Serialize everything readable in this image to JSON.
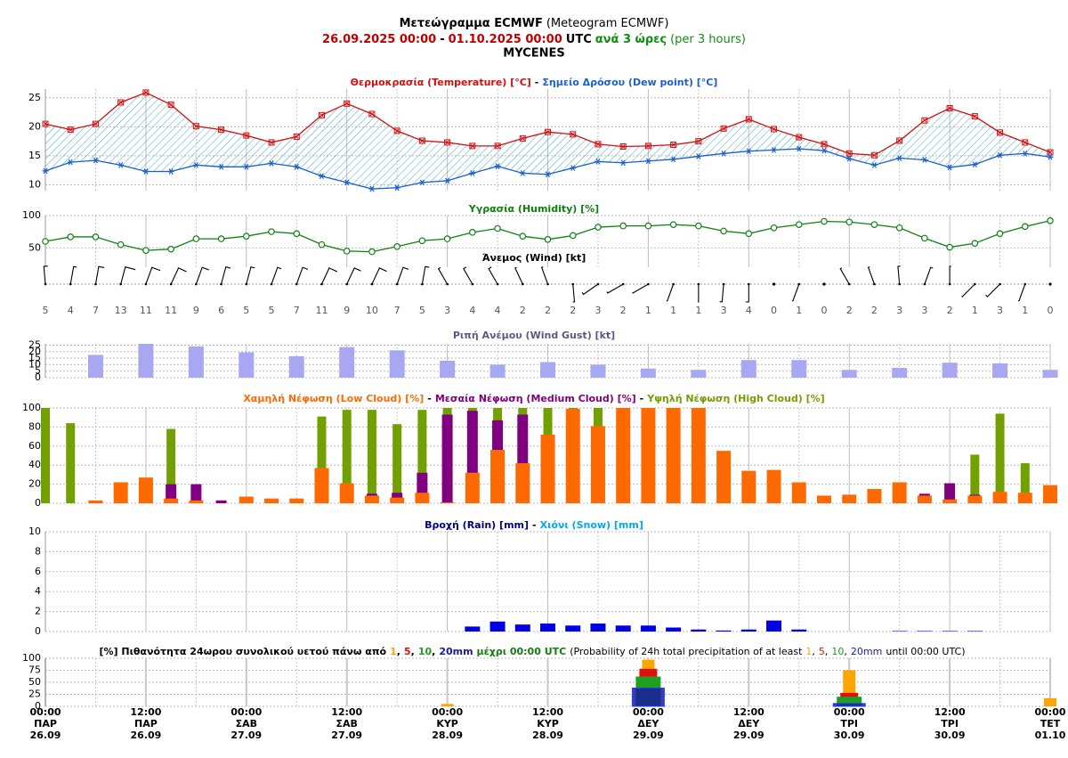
{
  "header": {
    "title": "Μετεώγραμμα ECMWF",
    "title_en": "(Meteogram ECMWF)",
    "start": "26.09.2025 00:00",
    "dash": "-",
    "end": "01.10.2025 00:00",
    "tz": "UTC",
    "step": "ανά 3 ώρες",
    "step_en": "(per 3 hours)",
    "location": "MYCENES"
  },
  "separator": "-",
  "time_axis": {
    "time": [
      "00:00",
      null,
      null,
      null,
      "12:00",
      null,
      null,
      null,
      "00:00",
      null,
      null,
      null,
      "12:00",
      null,
      null,
      null,
      "00:00",
      null,
      null,
      null,
      "12:00",
      null,
      null,
      null,
      "00:00",
      null,
      null,
      null,
      "12:00",
      null,
      null,
      null,
      "00:00",
      null,
      null,
      null,
      "12:00",
      null,
      null,
      null,
      "00:00"
    ],
    "day": [
      "ΠΑΡ",
      null,
      null,
      null,
      "ΠΑΡ",
      null,
      null,
      null,
      "ΣΑΒ",
      null,
      null,
      null,
      "ΣΑΒ",
      null,
      null,
      null,
      "ΚΥΡ",
      null,
      null,
      null,
      "ΚΥΡ",
      null,
      null,
      null,
      "ΔΕΥ",
      null,
      null,
      null,
      "ΔΕΥ",
      null,
      null,
      null,
      "ΤΡΙ",
      null,
      null,
      null,
      "ΤΡΙ",
      null,
      null,
      null,
      "ΤΕΤ"
    ],
    "date": [
      "26.09",
      null,
      null,
      null,
      "26.09",
      null,
      null,
      null,
      "27.09",
      null,
      null,
      null,
      "27.09",
      null,
      null,
      null,
      "28.09",
      null,
      null,
      null,
      "28.09",
      null,
      null,
      null,
      "29.09",
      null,
      null,
      null,
      "29.09",
      null,
      null,
      null,
      "30.09",
      null,
      null,
      null,
      "30.09",
      null,
      null,
      null,
      "01.10"
    ]
  },
  "chart_data": [
    {
      "type": "line",
      "fill_between": true,
      "ylim": [
        9,
        26.5
      ],
      "yticks": [
        10,
        15,
        20,
        25
      ],
      "grid": true,
      "series": [
        {
          "name": "Θερμοκρασία (Temperature) [°C]",
          "color": "#d01010",
          "marker": "square",
          "values": [
            20.5,
            19.5,
            20.5,
            24.2,
            25.9,
            23.8,
            20.1,
            19.5,
            18.5,
            17.3,
            18.3,
            22.0,
            24.0,
            22.2,
            19.3,
            17.6,
            17.3,
            16.7,
            16.7,
            18.0,
            19.1,
            18.7,
            17.0,
            16.6,
            16.7,
            16.9,
            17.5,
            19.7,
            21.3,
            19.6,
            18.2,
            17.0,
            15.4,
            15.1,
            17.6,
            21.1,
            23.2,
            21.8,
            19.0,
            17.3,
            15.6
          ]
        },
        {
          "name": "Σημείο Δρόσου (Dew point) [°C]",
          "color": "#1a5fd0",
          "marker": "star",
          "values": [
            12.4,
            13.9,
            14.2,
            13.4,
            12.3,
            12.3,
            13.4,
            13.1,
            13.1,
            13.7,
            13.1,
            11.5,
            10.4,
            9.3,
            9.5,
            10.4,
            10.7,
            12.0,
            13.2,
            12.0,
            11.8,
            12.9,
            14.0,
            13.8,
            14.1,
            14.4,
            14.9,
            15.4,
            15.8,
            16.0,
            16.2,
            15.9,
            14.5,
            13.4,
            14.6,
            14.3,
            13.0,
            13.5,
            15.1,
            15.4,
            14.8
          ]
        }
      ]
    },
    {
      "type": "line",
      "ylim": [
        20,
        100
      ],
      "yticks": [
        50,
        100
      ],
      "grid": true,
      "series": [
        {
          "name": "Υγρασία (Humidity) [%]",
          "color": "#108010",
          "marker": "circle",
          "values": [
            60,
            67,
            67,
            55,
            46,
            48,
            64,
            64,
            68,
            75,
            72,
            55,
            45,
            44,
            52,
            61,
            64,
            74,
            80,
            68,
            63,
            69,
            82,
            84,
            84,
            86,
            84,
            76,
            72,
            81,
            86,
            91,
            90,
            86,
            81,
            65,
            51,
            57,
            72,
            83,
            92
          ]
        }
      ]
    },
    {
      "type": "wind",
      "title": "Άνεμος (Wind) [kt]",
      "speed": [
        5,
        4,
        7,
        13,
        11,
        11,
        9,
        6,
        5,
        5,
        7,
        11,
        9,
        10,
        7,
        5,
        3,
        4,
        4,
        2,
        2,
        2,
        3,
        2,
        1,
        1,
        1,
        3,
        4,
        0,
        1,
        0,
        2,
        2,
        3,
        3,
        2,
        1,
        3,
        1,
        0
      ],
      "direction": [
        355,
        10,
        10,
        15,
        20,
        25,
        20,
        15,
        15,
        20,
        20,
        25,
        25,
        25,
        20,
        10,
        330,
        330,
        330,
        335,
        340,
        175,
        235,
        240,
        240,
        200,
        180,
        185,
        180,
        0,
        200,
        0,
        330,
        340,
        355,
        20,
        0,
        225,
        225,
        200,
        0
      ]
    },
    {
      "type": "bar",
      "ylim": [
        0,
        26
      ],
      "yticks": [
        0,
        5,
        10,
        15,
        20,
        25
      ],
      "grid": true,
      "series": [
        {
          "name": "Ριπή Ανέμου (Wind Gust) [kt]",
          "color": "#a8a8f2",
          "title_color": "#5a5a80",
          "values": [
            null,
            null,
            17.5,
            null,
            26,
            null,
            24,
            null,
            19.5,
            null,
            16.5,
            null,
            23.5,
            null,
            21,
            null,
            13,
            null,
            10,
            null,
            12,
            null,
            10,
            null,
            7,
            null,
            6,
            null,
            13.5,
            null,
            13.5,
            null,
            6,
            null,
            7.5,
            null,
            11.5,
            null,
            11,
            null,
            6
          ]
        }
      ]
    },
    {
      "type": "bar",
      "overlay": true,
      "ylim": [
        0,
        100
      ],
      "yticks": [
        0,
        20,
        40,
        60,
        80,
        100
      ],
      "grid": true,
      "series": [
        {
          "name": "Χαμηλή Νέφωση (Low Cloud) [%]",
          "color": "#ff6a00",
          "values": [
            0,
            0,
            3,
            22,
            27,
            5,
            3,
            0,
            7,
            5,
            5,
            37,
            21,
            8,
            6,
            11,
            1,
            32,
            56,
            42,
            72,
            99,
            81,
            100,
            100,
            100,
            100,
            55,
            34,
            35,
            22,
            8,
            9,
            15,
            22,
            8,
            4,
            8,
            12,
            11,
            19
          ]
        },
        {
          "name": "Μεσαία Νέφωση (Medium Cloud) [%]",
          "color": "#800080",
          "values": [
            0,
            0,
            0,
            0,
            0,
            20,
            20,
            3,
            0,
            0,
            0,
            0,
            0,
            10,
            11,
            32,
            93,
            97,
            87,
            93,
            0,
            0,
            0,
            0,
            0,
            0,
            0,
            0,
            0,
            0,
            0,
            0,
            0,
            0,
            0,
            10,
            21,
            9,
            0,
            0,
            0
          ]
        },
        {
          "name": "Υψηλή Νέφωση (High Cloud) [%]",
          "color": "#72a000",
          "values": [
            100,
            84,
            0,
            0,
            0,
            78,
            0,
            0,
            0,
            0,
            0,
            91,
            98,
            98,
            83,
            98,
            100,
            100,
            100,
            100,
            100,
            100,
            100,
            0,
            0,
            0,
            0,
            0,
            0,
            0,
            0,
            0,
            0,
            0,
            0,
            0,
            0,
            51,
            94,
            42,
            0
          ]
        }
      ]
    },
    {
      "type": "bar",
      "ylim": [
        0,
        10
      ],
      "yticks": [
        0,
        2,
        4,
        6,
        8,
        10
      ],
      "grid": true,
      "series": [
        {
          "name": "Βροχή (Rain) [mm]",
          "color": "#0000e6",
          "title_color": "#000080",
          "values": [
            0,
            0,
            0,
            0,
            0,
            0,
            0,
            0,
            0,
            0,
            0,
            0,
            0,
            0,
            0,
            0,
            0,
            0.5,
            1.0,
            0.7,
            0.8,
            0.6,
            0.8,
            0.6,
            0.6,
            0.4,
            0.2,
            0.1,
            0.2,
            1.1,
            0.2,
            0,
            0,
            0,
            0.05,
            0.05,
            0.05,
            0.05,
            0,
            0,
            0
          ]
        },
        {
          "name": "Χιόνι (Snow) [mm]",
          "color": "#00a8f0",
          "values": [
            0,
            0,
            0,
            0,
            0,
            0,
            0,
            0,
            0,
            0,
            0,
            0,
            0,
            0,
            0,
            0,
            0,
            0,
            0,
            0,
            0,
            0,
            0,
            0,
            0,
            0,
            0,
            0,
            0,
            0,
            0,
            0,
            0,
            0,
            0,
            0,
            0,
            0,
            0,
            0,
            0
          ]
        }
      ]
    },
    {
      "type": "probability",
      "ylim": [
        0,
        100
      ],
      "yticks": [
        0,
        25,
        50,
        75,
        100
      ],
      "grid": true,
      "title_prefix": "[%] Πιθανότητα 24ωρου συνολικού υετού πάνω από",
      "list_separator": ",",
      "title_suffix": "μέχρι 00:00 UTC",
      "title_en_prefix": "(Probability of 24h total precipitation of at least",
      "title_en_suffix": "until 00:00 UTC)",
      "series": [
        {
          "name": "1",
          "color": "#ffa500",
          "values": [
            0,
            0,
            5,
            97,
            75,
            17
          ]
        },
        {
          "name": "5",
          "color": "#e01010",
          "values": [
            0,
            0,
            0,
            78,
            28,
            0
          ]
        },
        {
          "name": "10",
          "color": "#20a020",
          "values": [
            0,
            0,
            0,
            62,
            20,
            0
          ]
        },
        {
          "name": "20mm",
          "color": "#1a1aa0",
          "values": [
            0,
            0,
            0,
            38,
            6,
            0
          ]
        }
      ]
    }
  ]
}
